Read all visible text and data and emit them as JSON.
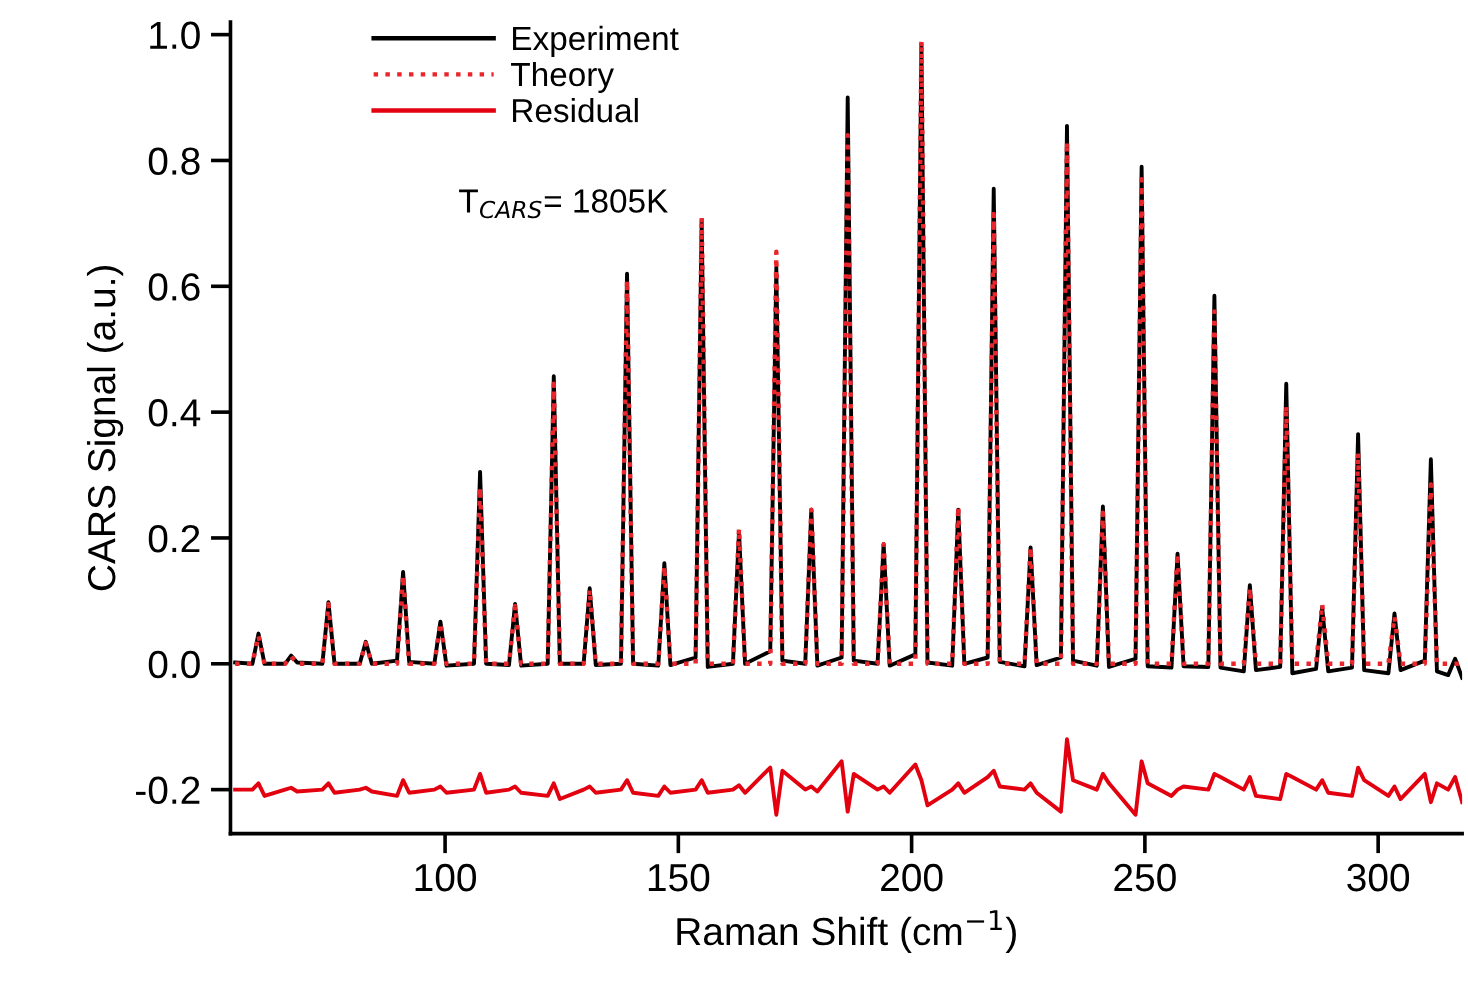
{
  "chart_data": {
    "type": "line",
    "xlabel": "Raman Shift (cm$^{−1}$)",
    "ylabel": "CARS Signal (a.u.)",
    "annotations": [
      "T$_{CARS}$= 1805K"
    ],
    "x": [
      55,
      58.7,
      60,
      61.3,
      65.7,
      67,
      68.3,
      73.7,
      75,
      76.3,
      81.7,
      83,
      84.3,
      89.7,
      91,
      92.3,
      97.7,
      99,
      100.3,
      106.2,
      107.5,
      108.8,
      113.7,
      115,
      116.3,
      122,
      123.3,
      124.6,
      129.7,
      131,
      132.3,
      137.7,
      139,
      140.3,
      145.7,
      147,
      148.3,
      153.7,
      155,
      156.3,
      161.7,
      163,
      164.3,
      169.7,
      171,
      172.3,
      177.2,
      178.5,
      179.8,
      185,
      186.3,
      187.6,
      192.7,
      194,
      195.3,
      200.8,
      202.1,
      203.4,
      208.7,
      210,
      211.3,
      216.3,
      217.6,
      218.9,
      224.2,
      225.5,
      226.8,
      232,
      233.3,
      234.6,
      239.7,
      241,
      242.3,
      248,
      249.3,
      250.6,
      255.7,
      257,
      258.3,
      263.6,
      264.9,
      266.2,
      271.2,
      272.5,
      273.8,
      279,
      280.3,
      281.6,
      286.7,
      288,
      289.3,
      294.4,
      295.7,
      297,
      302.2,
      303.5,
      304.8,
      310,
      311.3,
      312.6,
      315,
      316.5,
      318
    ],
    "series": [
      {
        "name": "Experiment",
        "color": "#000000",
        "line_style": "solid",
        "values": [
          0.002,
          0,
          0.048,
          0,
          0,
          0.013,
          0.002,
          0,
          0.098,
          0,
          0,
          0.035,
          0,
          0.005,
          0.146,
          0.003,
          0,
          0.067,
          -0.003,
          0,
          0.305,
          0,
          -0.002,
          0.095,
          -0.003,
          0,
          0.457,
          0,
          0,
          0.12,
          -0.002,
          0,
          0.62,
          0,
          -0.003,
          0.16,
          -0.002,
          0.01,
          0.705,
          -0.005,
          0,
          0.21,
          0,
          0.02,
          0.63,
          0.005,
          0,
          0.245,
          -0.003,
          0.01,
          0.9,
          0.005,
          0,
          0.19,
          -0.003,
          0.015,
          0.985,
          0.002,
          -0.003,
          0.245,
          0,
          0.01,
          0.755,
          0.003,
          -0.004,
          0.185,
          -0.002,
          0.01,
          0.855,
          0.005,
          -0.003,
          0.25,
          -0.005,
          0.008,
          0.79,
          -0.004,
          -0.006,
          0.175,
          -0.004,
          -0.005,
          0.585,
          -0.006,
          -0.012,
          0.125,
          -0.01,
          -0.005,
          0.445,
          -0.015,
          -0.008,
          0.09,
          -0.012,
          -0.006,
          0.365,
          -0.01,
          -0.015,
          0.08,
          -0.01,
          0.005,
          0.325,
          -0.012,
          -0.018,
          0.008,
          -0.022
        ]
      },
      {
        "name": "Theory",
        "color": "#e8262b",
        "line_style": "dotted",
        "values": [
          0,
          0,
          0.045,
          0,
          0,
          0.012,
          0,
          0,
          0.095,
          0,
          0,
          0.033,
          0,
          0,
          0.14,
          0,
          0,
          0.065,
          0,
          0,
          0.28,
          0,
          0,
          0.092,
          0,
          0,
          0.445,
          0,
          0,
          0.118,
          0,
          0,
          0.61,
          0,
          0,
          0.155,
          0,
          0,
          0.71,
          0,
          0,
          0.215,
          0,
          0,
          0.655,
          0,
          0,
          0.245,
          0,
          0,
          0.84,
          0,
          0,
          0.19,
          0,
          0,
          0.99,
          0,
          0,
          0.25,
          0,
          0,
          0.715,
          0,
          0,
          0.185,
          0,
          0,
          0.83,
          0,
          0,
          0.24,
          0,
          0,
          0.77,
          0,
          0,
          0.175,
          0,
          0,
          0.56,
          0,
          0,
          0.12,
          0,
          0,
          0.41,
          0,
          0,
          0.095,
          0,
          0,
          0.335,
          0,
          0,
          0.075,
          0,
          0,
          0.285,
          0,
          0,
          0,
          0
        ]
      },
      {
        "name": "Residual",
        "color": "#e3000f",
        "line_style": "solid",
        "values": [
          -0.2,
          -0.2,
          -0.19,
          -0.21,
          -0.2,
          -0.197,
          -0.203,
          -0.2,
          -0.19,
          -0.205,
          -0.2,
          -0.197,
          -0.203,
          -0.21,
          -0.185,
          -0.205,
          -0.2,
          -0.195,
          -0.205,
          -0.2,
          -0.175,
          -0.205,
          -0.2,
          -0.195,
          -0.205,
          -0.21,
          -0.19,
          -0.215,
          -0.2,
          -0.195,
          -0.205,
          -0.2,
          -0.185,
          -0.205,
          -0.21,
          -0.195,
          -0.205,
          -0.2,
          -0.185,
          -0.205,
          -0.2,
          -0.193,
          -0.205,
          -0.165,
          -0.24,
          -0.17,
          -0.2,
          -0.195,
          -0.203,
          -0.155,
          -0.235,
          -0.175,
          -0.2,
          -0.195,
          -0.205,
          -0.16,
          -0.185,
          -0.225,
          -0.2,
          -0.19,
          -0.205,
          -0.18,
          -0.17,
          -0.195,
          -0.2,
          -0.19,
          -0.205,
          -0.235,
          -0.12,
          -0.185,
          -0.2,
          -0.175,
          -0.19,
          -0.24,
          -0.155,
          -0.19,
          -0.21,
          -0.2,
          -0.195,
          -0.2,
          -0.175,
          -0.18,
          -0.2,
          -0.18,
          -0.21,
          -0.215,
          -0.175,
          -0.18,
          -0.2,
          -0.185,
          -0.205,
          -0.21,
          -0.165,
          -0.185,
          -0.21,
          -0.195,
          -0.215,
          -0.175,
          -0.22,
          -0.19,
          -0.2,
          -0.18,
          -0.22
        ]
      }
    ],
    "xlim": [
      54,
      318
    ],
    "xticks": [
      100,
      150,
      200,
      250,
      300
    ],
    "ylim": [
      -0.27,
      1.02
    ],
    "yticks": [
      {
        "value": -0.2,
        "label": "-0.2"
      },
      {
        "value": 0,
        "label": "0.0"
      },
      {
        "value": 0.2,
        "label": "0.2"
      },
      {
        "value": 0.4,
        "label": "0.4"
      },
      {
        "value": 0.6,
        "label": "0.6"
      },
      {
        "value": 0.8,
        "label": "0.8"
      },
      {
        "value": 1.0,
        "label": "1.0"
      }
    ],
    "grid": false,
    "legend": "top left"
  }
}
